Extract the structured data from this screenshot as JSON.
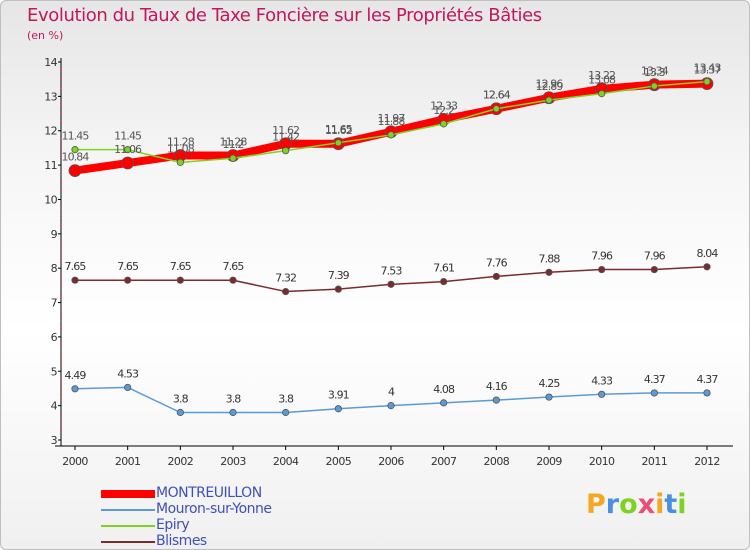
{
  "chart_data": {
    "type": "line",
    "title": "Evolution du Taux de Taxe Foncière sur les Propriétés Bâties",
    "unit_label": "(en %)",
    "x": [
      "2000",
      "2001",
      "2002",
      "2003",
      "2004",
      "2005",
      "2006",
      "2007",
      "2008",
      "2009",
      "2010",
      "2011",
      "2012"
    ],
    "ylim": [
      3,
      14
    ],
    "yticks": [
      3,
      4,
      5,
      6,
      7,
      8,
      9,
      10,
      11,
      12,
      13,
      14
    ],
    "grid": false,
    "series": [
      {
        "name": "MONTREUILLON",
        "color": "#ff0000",
        "values": [
          10.84,
          11.06,
          11.28,
          11.28,
          11.62,
          11.62,
          11.97,
          12.33,
          12.64,
          12.96,
          13.22,
          13.34,
          13.37
        ],
        "labels": [
          "10.84",
          "11.06",
          "11.28",
          "11.28",
          "11.62",
          "11.62",
          "11.97",
          "12.33",
          "12.64",
          "12.96",
          "13.22",
          "13.34",
          "13.37"
        ]
      },
      {
        "name": "Mouron-sur-Yonne",
        "color": "#5b9bd5",
        "values": [
          4.49,
          4.53,
          3.8,
          3.8,
          3.8,
          3.91,
          4,
          4.08,
          4.16,
          4.25,
          4.33,
          4.37,
          4.37
        ],
        "labels": [
          "4.49",
          "4.53",
          "3.8",
          "3.8",
          "3.8",
          "3.91",
          "4",
          "4.08",
          "4.16",
          "4.25",
          "4.33",
          "4.37",
          "4.37"
        ]
      },
      {
        "name": "Epiry",
        "color": "#7ed321",
        "values": [
          11.45,
          11.45,
          11.08,
          11.2,
          11.42,
          11.65,
          11.88,
          12.2,
          12.64,
          12.89,
          13.08,
          13.3,
          13.43
        ],
        "labels": [
          "11.45",
          "11.45",
          "11.08",
          "11.2",
          "11.42",
          "11.65",
          "11.88",
          "12.2",
          "12.64",
          "12.89",
          "13.08",
          "13.3",
          "13.43"
        ]
      },
      {
        "name": "Blismes",
        "color": "#7b2b2b",
        "values": [
          7.65,
          7.65,
          7.65,
          7.65,
          7.32,
          7.39,
          7.53,
          7.61,
          7.76,
          7.88,
          7.96,
          7.96,
          8.04
        ],
        "labels": [
          "7.65",
          "7.65",
          "7.65",
          "7.65",
          "7.32",
          "7.39",
          "7.53",
          "7.61",
          "7.76",
          "7.88",
          "7.96",
          "7.96",
          "8.04"
        ]
      }
    ]
  },
  "legend": [
    {
      "label": "MONTREUILLON",
      "color": "#ff0000"
    },
    {
      "label": "Mouron-sur-Yonne",
      "color": "#5b9bd5"
    },
    {
      "label": "Epiry",
      "color": "#7ed321"
    },
    {
      "label": "Blismes",
      "color": "#7b2b2b"
    }
  ],
  "brand": {
    "letters": [
      "P",
      "r",
      "o",
      "x",
      "i",
      "t",
      "i"
    ],
    "colors": [
      "#f5a623",
      "#4a90e2",
      "#7ed321",
      "#e94e77",
      "#f5a623",
      "#4a90e2",
      "#7ed321"
    ]
  }
}
